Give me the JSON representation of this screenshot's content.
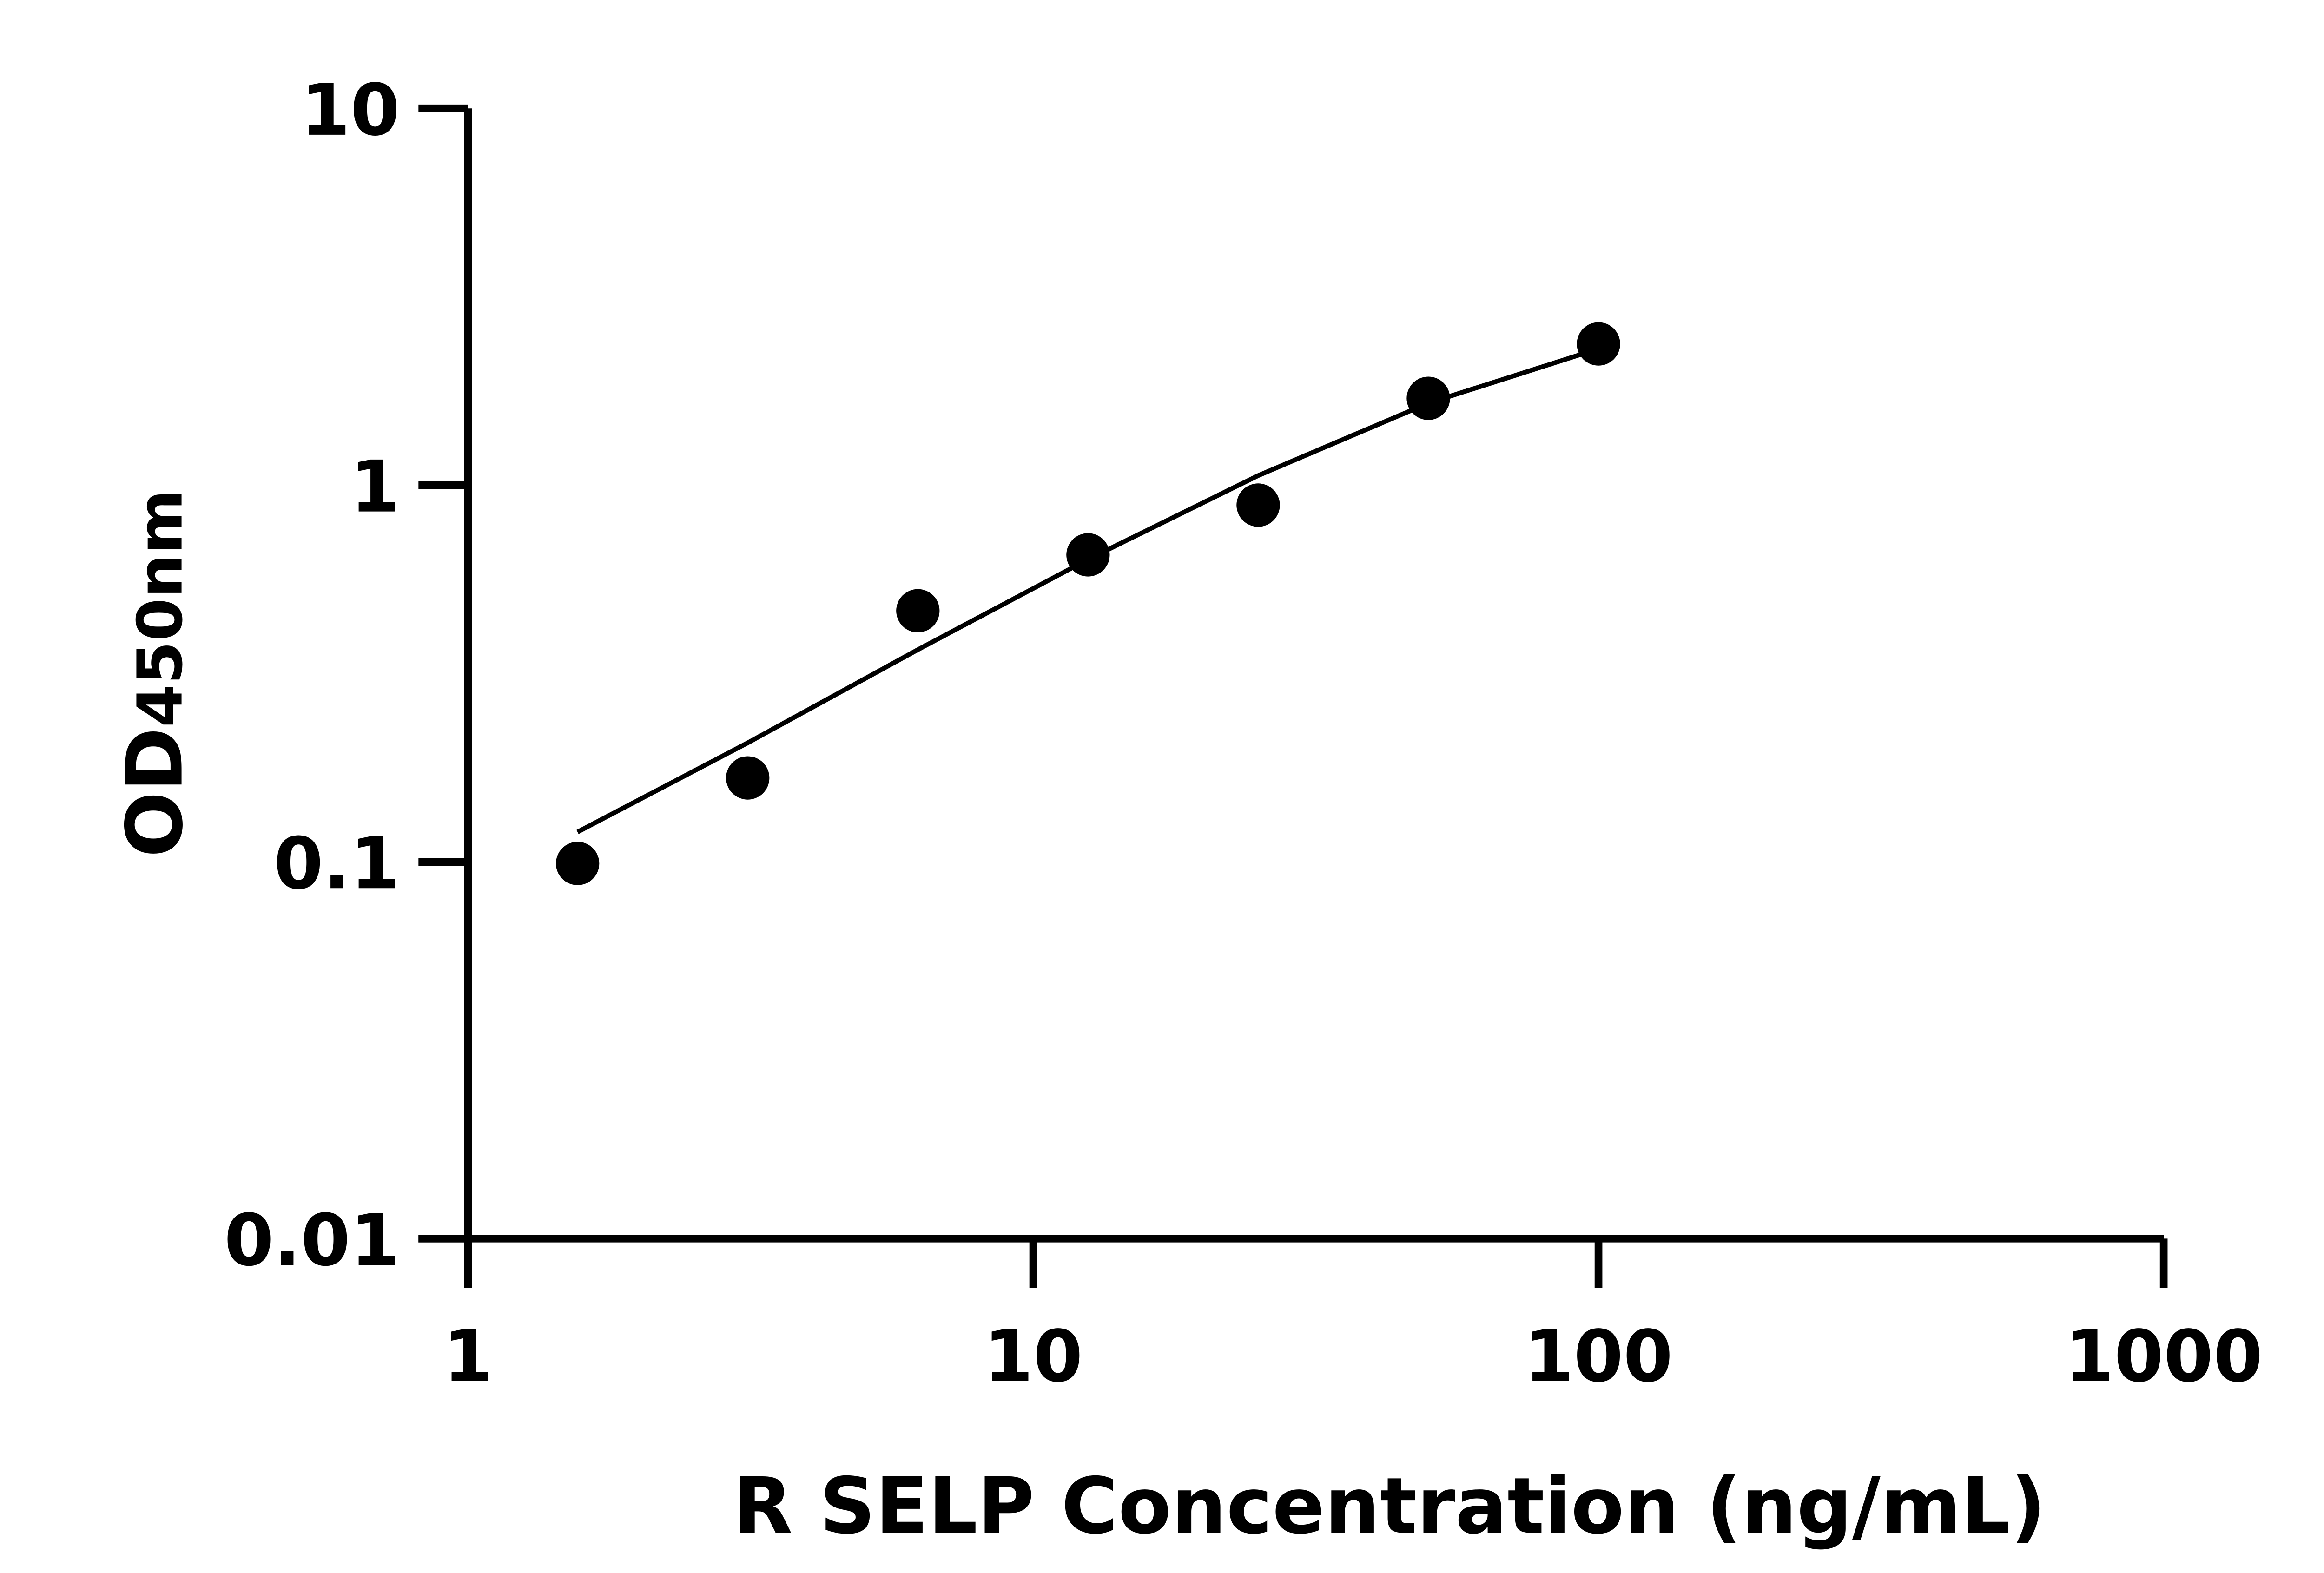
{
  "chart_data": {
    "type": "scatter",
    "title": "",
    "xlabel": "R SELP Concentration (ng/mL)",
    "ylabel_main": "OD",
    "ylabel_sub": "450nm",
    "x_scale": "log",
    "y_scale": "log",
    "xlim": [
      1,
      1000
    ],
    "ylim": [
      0.01,
      10
    ],
    "x_ticks": [
      "1",
      "10",
      "100",
      "1000"
    ],
    "y_ticks": [
      "0.01",
      "0.1",
      "1",
      "10"
    ],
    "grid": false,
    "points": {
      "x": [
        1.5625,
        3.125,
        6.25,
        12.5,
        25,
        50,
        100
      ],
      "y": [
        0.099,
        0.167,
        0.464,
        0.653,
        0.885,
        1.7,
        2.37
      ]
    },
    "fit_curve": {
      "x": [
        1.5625,
        3.125,
        6.25,
        12.5,
        25,
        50,
        100
      ],
      "y": [
        0.12,
        0.207,
        0.366,
        0.635,
        1.06,
        1.65,
        2.3
      ]
    },
    "colors": {
      "points": "#000000",
      "line": "#000000",
      "axes": "#000000"
    }
  }
}
